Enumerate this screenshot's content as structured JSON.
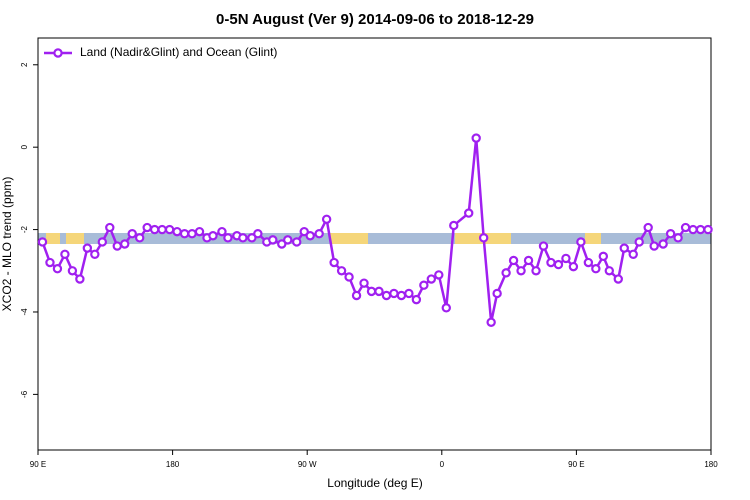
{
  "chart_data": {
    "type": "line",
    "title": "0-5N August (Ver 9)   2014-09-06 to 2018-12-29",
    "x_label": "Longitude (deg E)",
    "y_label": "XCO2 - MLO trend (ppm)",
    "xlim": [
      90,
      540
    ],
    "ylim": [
      -7.35,
      2.65
    ],
    "xticks": [
      {
        "value": 90,
        "label": "90 E"
      },
      180,
      {
        "value": 270,
        "label": "90 W"
      },
      {
        "value": 360,
        "label": "0"
      },
      {
        "value": 450,
        "label": "90 E"
      },
      {
        "value": 540,
        "label": "180"
      }
    ],
    "yticks": [
      2,
      0,
      -2,
      -4,
      -6
    ],
    "legend": "topleft",
    "grid": false,
    "x": [
      93,
      98,
      103,
      108,
      113,
      118,
      123,
      128,
      133,
      138,
      143,
      148,
      153,
      158,
      163,
      168,
      173,
      178,
      183,
      188,
      193,
      198,
      203,
      207,
      213,
      217,
      223,
      227,
      233,
      237,
      243,
      247,
      253,
      257,
      263,
      268,
      272,
      278,
      283,
      288,
      293,
      298,
      303,
      308,
      313,
      318,
      323,
      328,
      333,
      338,
      343,
      348,
      353,
      358,
      363,
      368,
      378,
      383,
      388,
      393,
      397,
      403,
      408,
      413,
      418,
      423,
      428,
      433,
      438,
      443,
      448,
      453,
      458,
      463,
      468,
      472,
      478,
      482,
      488,
      492,
      498,
      502,
      508,
      513,
      518,
      523,
      528,
      533,
      538
    ],
    "series": [
      {
        "name": "Land (Nadir&Glint) and Ocean (Glint)",
        "color": "#a020f0",
        "values": [
          -2.3,
          -2.8,
          -2.95,
          -2.6,
          -3.0,
          -3.2,
          -2.45,
          -2.6,
          -2.3,
          -1.95,
          -2.4,
          -2.35,
          -2.1,
          -2.2,
          -1.95,
          -2.0,
          -2.0,
          -2.0,
          -2.05,
          -2.1,
          -2.1,
          -2.05,
          -2.2,
          -2.15,
          -2.05,
          -2.2,
          -2.15,
          -2.2,
          -2.2,
          -2.1,
          -2.3,
          -2.25,
          -2.35,
          -2.25,
          -2.3,
          -2.05,
          -2.15,
          -2.1,
          -1.75,
          -2.8,
          -3.0,
          -3.15,
          -3.6,
          -3.3,
          -3.5,
          -3.5,
          -3.6,
          -3.55,
          -3.6,
          -3.55,
          -3.7,
          -3.35,
          -3.2,
          -3.1,
          -3.9,
          -1.9,
          -1.6,
          0.22,
          -2.2,
          -4.25,
          -3.55,
          -3.05,
          -2.75,
          -3.0,
          -2.75,
          -3.0,
          -2.4,
          -2.8,
          -2.85,
          -2.7,
          -2.9,
          -2.3,
          -2.8,
          -2.95,
          -2.65,
          -3.0,
          -3.2,
          -2.45,
          -2.6,
          -2.3,
          -1.95,
          -2.4,
          -2.35,
          -2.1,
          -2.2,
          -1.95,
          -2.0,
          -2.0,
          -2.0
        ]
      }
    ]
  }
}
